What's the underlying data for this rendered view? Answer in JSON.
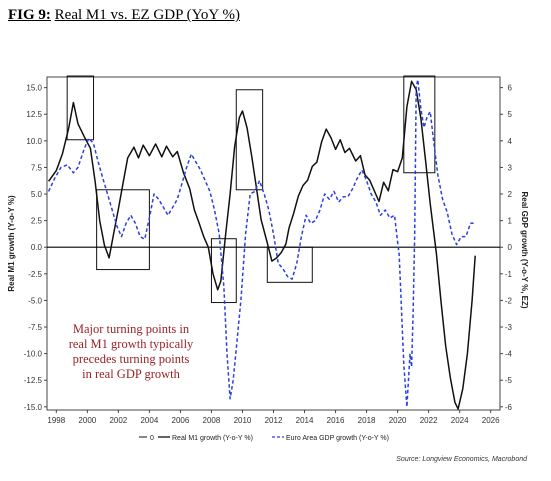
{
  "figure": {
    "label": "FIG 9:",
    "title": "Real M1 vs. EZ GDP (YoY %)"
  },
  "chart_data": {
    "type": "line",
    "x_ticks": [
      "1998",
      "2000",
      "2002",
      "2004",
      "2006",
      "2008",
      "2010",
      "2012",
      "2014",
      "2016",
      "2018",
      "2020",
      "2022",
      "2024",
      "2026"
    ],
    "xlim": [
      1997.4,
      2026.6
    ],
    "left_axis": {
      "label": "Real M1 growth (Y-o-Y %)",
      "ylim": [
        -15.3,
        16
      ],
      "ticks": [
        "15.0",
        "12.5",
        "10.0",
        "7.5",
        "5.0",
        "2.5",
        "0.0",
        "-2.5",
        "-5.0",
        "-7.5",
        "-10.0",
        "-12.5",
        "-15.0"
      ],
      "tick_values": [
        15,
        12.5,
        10,
        7.5,
        5,
        2.5,
        0,
        -2.5,
        -5,
        -7.5,
        -10,
        -12.5,
        -15
      ]
    },
    "right_axis": {
      "label": "Real GDP growth (Y-o-Y %, EZ)",
      "ylim": [
        -6.12,
        6.4
      ],
      "ticks": [
        "6",
        "5",
        "4",
        "3",
        "2",
        "1",
        "0",
        "-1",
        "-2",
        "-3",
        "-4",
        "-5",
        "-6"
      ],
      "tick_values": [
        6,
        5,
        4,
        3,
        2,
        1,
        0,
        -1,
        -2,
        -3,
        -4,
        -5,
        -6
      ]
    },
    "zero_line": {
      "axis": "left",
      "value": 0
    },
    "series": [
      {
        "name": "Real M1 growth (Y-o-Y %)",
        "axis": "left",
        "color": "#111111",
        "style": "solid",
        "points": [
          [
            1997.5,
            6.2
          ],
          [
            1998.0,
            7.2
          ],
          [
            1998.4,
            8.8
          ],
          [
            1998.8,
            11.2
          ],
          [
            1999.1,
            13.6
          ],
          [
            1999.4,
            11.6
          ],
          [
            1999.8,
            10.4
          ],
          [
            2000.2,
            9.3
          ],
          [
            2000.5,
            6.2
          ],
          [
            2000.8,
            2.5
          ],
          [
            2001.1,
            0.2
          ],
          [
            2001.4,
            -1.0
          ],
          [
            2001.7,
            1.3
          ],
          [
            2002.0,
            3.6
          ],
          [
            2002.3,
            6.0
          ],
          [
            2002.6,
            8.4
          ],
          [
            2003.0,
            9.4
          ],
          [
            2003.3,
            8.4
          ],
          [
            2003.6,
            9.6
          ],
          [
            2004.0,
            8.6
          ],
          [
            2004.4,
            9.7
          ],
          [
            2004.8,
            8.5
          ],
          [
            2005.1,
            9.5
          ],
          [
            2005.5,
            8.5
          ],
          [
            2005.8,
            9.0
          ],
          [
            2006.2,
            7.0
          ],
          [
            2006.6,
            5.5
          ],
          [
            2006.9,
            3.5
          ],
          [
            2007.2,
            2.3
          ],
          [
            2007.5,
            1.0
          ],
          [
            2007.8,
            0.0
          ],
          [
            2008.1,
            -2.5
          ],
          [
            2008.4,
            -4.0
          ],
          [
            2008.6,
            -3.2
          ],
          [
            2008.9,
            1.0
          ],
          [
            2009.2,
            5.0
          ],
          [
            2009.5,
            9.5
          ],
          [
            2009.8,
            12.2
          ],
          [
            2010.0,
            12.8
          ],
          [
            2010.3,
            11.2
          ],
          [
            2010.6,
            8.5
          ],
          [
            2010.9,
            5.6
          ],
          [
            2011.2,
            2.6
          ],
          [
            2011.6,
            0.4
          ],
          [
            2011.9,
            -1.3
          ],
          [
            2012.2,
            -1.0
          ],
          [
            2012.5,
            -0.5
          ],
          [
            2012.8,
            0.3
          ],
          [
            2013.0,
            1.8
          ],
          [
            2013.3,
            3.2
          ],
          [
            2013.6,
            4.8
          ],
          [
            2013.9,
            5.8
          ],
          [
            2014.2,
            6.3
          ],
          [
            2014.5,
            7.6
          ],
          [
            2014.8,
            8.0
          ],
          [
            2015.1,
            9.9
          ],
          [
            2015.4,
            11.1
          ],
          [
            2015.7,
            10.3
          ],
          [
            2016.0,
            9.2
          ],
          [
            2016.3,
            10.1
          ],
          [
            2016.6,
            8.9
          ],
          [
            2016.9,
            9.3
          ],
          [
            2017.3,
            8.1
          ],
          [
            2017.6,
            8.6
          ],
          [
            2017.9,
            6.8
          ],
          [
            2018.2,
            6.3
          ],
          [
            2018.5,
            5.3
          ],
          [
            2018.8,
            4.3
          ],
          [
            2019.1,
            6.1
          ],
          [
            2019.4,
            5.3
          ],
          [
            2019.7,
            7.3
          ],
          [
            2020.0,
            7.1
          ],
          [
            2020.3,
            8.4
          ],
          [
            2020.6,
            13.2
          ],
          [
            2020.9,
            15.6
          ],
          [
            2021.2,
            14.8
          ],
          [
            2021.5,
            12.1
          ],
          [
            2021.8,
            8.2
          ],
          [
            2022.1,
            4.1
          ],
          [
            2022.5,
            -0.6
          ],
          [
            2022.8,
            -5.1
          ],
          [
            2023.1,
            -9.3
          ],
          [
            2023.4,
            -12.3
          ],
          [
            2023.7,
            -14.6
          ],
          [
            2023.9,
            -15.2
          ],
          [
            2024.2,
            -13.3
          ],
          [
            2024.5,
            -10.0
          ],
          [
            2024.8,
            -5.0
          ],
          [
            2025.0,
            -0.8
          ]
        ]
      },
      {
        "name": "Euro Area GDP growth (Y-o-Y %)",
        "axis": "right",
        "color": "#2b3fe0",
        "style": "dashed",
        "points": [
          [
            1997.5,
            2.1
          ],
          [
            1997.9,
            2.6
          ],
          [
            1998.3,
            3.0
          ],
          [
            1998.7,
            3.1
          ],
          [
            1999.1,
            2.8
          ],
          [
            1999.4,
            3.0
          ],
          [
            1999.8,
            3.7
          ],
          [
            2000.1,
            4.1
          ],
          [
            2000.4,
            3.9
          ],
          [
            2000.7,
            3.2
          ],
          [
            2001.0,
            2.6
          ],
          [
            2001.3,
            2.0
          ],
          [
            2001.6,
            1.4
          ],
          [
            2001.9,
            0.8
          ],
          [
            2002.2,
            0.4
          ],
          [
            2002.5,
            0.9
          ],
          [
            2002.8,
            1.2
          ],
          [
            2003.1,
            0.9
          ],
          [
            2003.4,
            0.4
          ],
          [
            2003.7,
            0.3
          ],
          [
            2004.0,
            1.1
          ],
          [
            2004.3,
            2.0
          ],
          [
            2004.6,
            1.8
          ],
          [
            2004.9,
            1.5
          ],
          [
            2005.2,
            1.2
          ],
          [
            2005.5,
            1.5
          ],
          [
            2005.8,
            1.8
          ],
          [
            2006.1,
            2.4
          ],
          [
            2006.4,
            3.0
          ],
          [
            2006.7,
            3.5
          ],
          [
            2007.0,
            3.2
          ],
          [
            2007.3,
            2.9
          ],
          [
            2007.6,
            2.5
          ],
          [
            2007.9,
            2.1
          ],
          [
            2008.2,
            1.4
          ],
          [
            2008.5,
            0.5
          ],
          [
            2008.8,
            -1.5
          ],
          [
            2009.0,
            -4.0
          ],
          [
            2009.2,
            -5.7
          ],
          [
            2009.4,
            -5.0
          ],
          [
            2009.6,
            -3.8
          ],
          [
            2009.9,
            -2.0
          ],
          [
            2010.2,
            0.5
          ],
          [
            2010.5,
            2.0
          ],
          [
            2010.8,
            2.1
          ],
          [
            2011.1,
            2.5
          ],
          [
            2011.4,
            2.0
          ],
          [
            2011.7,
            1.4
          ],
          [
            2012.0,
            0.5
          ],
          [
            2012.3,
            -0.6
          ],
          [
            2012.6,
            -0.8
          ],
          [
            2012.9,
            -1.1
          ],
          [
            2013.2,
            -1.2
          ],
          [
            2013.5,
            -0.6
          ],
          [
            2013.8,
            0.4
          ],
          [
            2014.1,
            1.2
          ],
          [
            2014.4,
            0.9
          ],
          [
            2014.7,
            1.0
          ],
          [
            2015.0,
            1.4
          ],
          [
            2015.3,
            2.0
          ],
          [
            2015.6,
            1.8
          ],
          [
            2015.9,
            2.1
          ],
          [
            2016.2,
            1.7
          ],
          [
            2016.5,
            1.9
          ],
          [
            2016.8,
            1.9
          ],
          [
            2017.1,
            2.2
          ],
          [
            2017.4,
            2.6
          ],
          [
            2017.7,
            2.9
          ],
          [
            2018.0,
            2.5
          ],
          [
            2018.3,
            2.0
          ],
          [
            2018.6,
            1.7
          ],
          [
            2018.9,
            1.2
          ],
          [
            2019.2,
            1.4
          ],
          [
            2019.5,
            1.1
          ],
          [
            2019.8,
            1.2
          ],
          [
            2020.1,
            -0.3
          ],
          [
            2020.4,
            -4.4
          ],
          [
            2020.6,
            -6.0
          ],
          [
            2020.8,
            -4.0
          ],
          [
            2020.9,
            -4.5
          ],
          [
            2021.0,
            -2.5
          ],
          [
            2021.1,
            0.5
          ],
          [
            2021.2,
            6.0
          ],
          [
            2021.3,
            6.3
          ],
          [
            2021.5,
            5.2
          ],
          [
            2021.7,
            4.5
          ],
          [
            2021.9,
            4.9
          ],
          [
            2022.1,
            5.1
          ],
          [
            2022.3,
            4.1
          ],
          [
            2022.6,
            2.7
          ],
          [
            2022.9,
            1.8
          ],
          [
            2023.2,
            1.3
          ],
          [
            2023.5,
            0.5
          ],
          [
            2023.8,
            0.1
          ],
          [
            2024.1,
            0.4
          ],
          [
            2024.4,
            0.4
          ],
          [
            2024.7,
            0.9
          ],
          [
            2024.9,
            0.9
          ]
        ]
      }
    ],
    "highlight_boxes": [
      {
        "x": [
          1998.7,
          2000.4
        ],
        "y": [
          10.1,
          16.2
        ]
      },
      {
        "x": [
          2000.6,
          2004.0
        ],
        "y": [
          -2.1,
          5.4
        ]
      },
      {
        "x": [
          2008.0,
          2009.6
        ],
        "y": [
          -5.2,
          0.8
        ]
      },
      {
        "x": [
          2009.6,
          2011.3
        ],
        "y": [
          5.4,
          14.8
        ]
      },
      {
        "x": [
          2011.6,
          2014.5
        ],
        "y": [
          -3.3,
          0.0
        ]
      },
      {
        "x": [
          2020.4,
          2022.4
        ],
        "y": [
          7.0,
          16.3
        ]
      }
    ],
    "annotation": [
      "Major turning points in",
      "real M1 growth typically",
      "precedes turning points",
      "in real GDP growth"
    ],
    "legend": {
      "position": "bottom",
      "entries": [
        "0",
        "Real M1 growth (Y-o-Y %)",
        "Euro Area GDP growth (Y-o-Y %)"
      ]
    },
    "source": "Source: Longview Economics, Macrobond"
  }
}
